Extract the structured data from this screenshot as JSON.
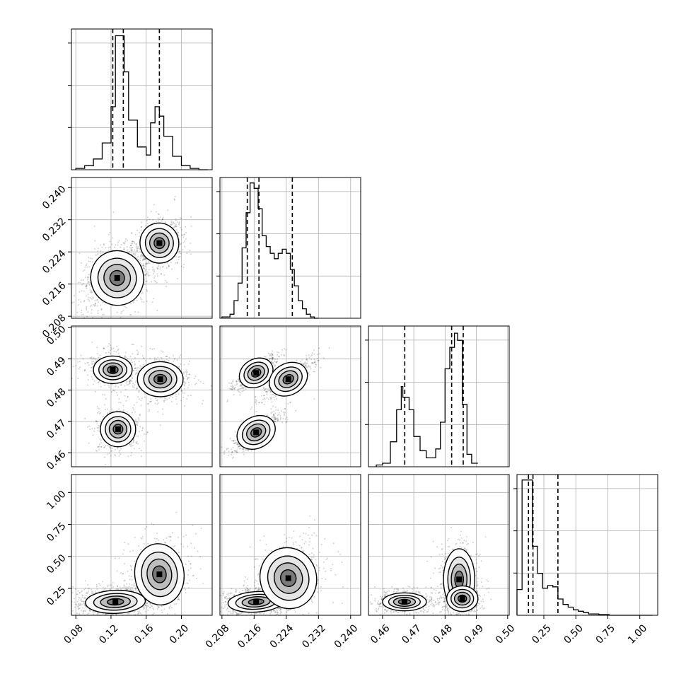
{
  "chart_data": {
    "type": "corner",
    "n_parameters": 4,
    "colors": {
      "line": "#000000",
      "grid": "#b0b0b0",
      "scatter": "#000000",
      "background": "#ffffff"
    },
    "grid": true,
    "axes": [
      {
        "range": [
          0.075,
          0.235
        ],
        "ticks": [
          0.08,
          0.12,
          0.16,
          0.2
        ],
        "tick_labels": [
          "0.08",
          "0.12",
          "0.16",
          "0.20"
        ]
      },
      {
        "range": [
          0.2075,
          0.2425
        ],
        "ticks": [
          0.208,
          0.216,
          0.224,
          0.232,
          0.24
        ],
        "tick_labels": [
          "0.208",
          "0.216",
          "0.224",
          "0.232",
          "0.240"
        ]
      },
      {
        "range": [
          0.4555,
          0.5005
        ],
        "ticks": [
          0.46,
          0.47,
          0.48,
          0.49,
          0.5
        ],
        "tick_labels": [
          "0.46",
          "0.47",
          "0.48",
          "0.49",
          "0.50"
        ]
      },
      {
        "range": [
          0.04,
          1.14
        ],
        "ticks": [
          0.25,
          0.5,
          0.75,
          1.0
        ],
        "tick_labels": [
          "0.25",
          "0.50",
          "0.75",
          "1.00"
        ]
      }
    ],
    "histograms": [
      {
        "param": 0,
        "bin_edges": [
          0.08,
          0.09,
          0.1,
          0.11,
          0.12,
          0.125,
          0.13,
          0.135,
          0.14,
          0.15,
          0.16,
          0.165,
          0.17,
          0.175,
          0.18,
          0.19,
          0.2,
          0.21,
          0.22,
          0.23
        ],
        "counts": [
          1,
          3,
          8,
          20,
          47,
          100,
          100,
          73,
          37,
          17,
          11,
          35,
          47,
          40,
          25,
          10,
          3,
          1,
          0
        ],
        "quantiles": [
          0.122,
          0.134,
          0.175
        ],
        "ylim": [
          0,
          105
        ]
      },
      {
        "param": 1,
        "bin_edges": [
          0.208,
          0.21,
          0.211,
          0.212,
          0.213,
          0.214,
          0.215,
          0.216,
          0.217,
          0.218,
          0.219,
          0.22,
          0.221,
          0.222,
          0.223,
          0.224,
          0.225,
          0.226,
          0.227,
          0.228,
          0.229,
          0.23,
          0.231,
          0.232
        ],
        "counts": [
          1,
          3,
          13,
          26,
          52,
          78,
          100,
          96,
          81,
          61,
          53,
          48,
          44,
          48,
          51,
          48,
          36,
          24,
          13,
          7,
          3,
          1,
          0
        ],
        "quantiles": [
          0.2143,
          0.2172,
          0.2255
        ],
        "ylim": [
          0,
          104
        ]
      },
      {
        "param": 2,
        "bin_edges": [
          0.458,
          0.46,
          0.4625,
          0.4645,
          0.466,
          0.4665,
          0.4685,
          0.47,
          0.472,
          0.474,
          0.4755,
          0.477,
          0.4785,
          0.48,
          0.4815,
          0.483,
          0.484,
          0.4855,
          0.487,
          0.4885,
          0.4905
        ],
        "counts": [
          1,
          2,
          14,
          32,
          45,
          39,
          32,
          17,
          9,
          5,
          5,
          10,
          25,
          55,
          67,
          75,
          71,
          35,
          7,
          2
        ],
        "quantiles": [
          0.4671,
          0.4821,
          0.4858
        ],
        "ylim": [
          0,
          79
        ]
      },
      {
        "param": 3,
        "bin_edges": [
          0.04,
          0.08,
          0.12,
          0.16,
          0.2,
          0.24,
          0.28,
          0.32,
          0.36,
          0.4,
          0.44,
          0.48,
          0.52,
          0.56,
          0.6,
          0.68,
          0.76,
          1.1
        ],
        "counts": [
          19,
          100,
          100,
          51,
          31,
          20,
          22,
          21,
          12,
          8,
          6,
          4,
          3,
          2,
          1,
          0.5,
          0
        ],
        "quantiles": [
          0.13,
          0.165,
          0.36
        ],
        "ylim": [
          0,
          104
        ]
      }
    ],
    "density_panels": [
      {
        "x_param": 0,
        "y_param": 1,
        "modes": [
          {
            "x": 0.127,
            "y": 0.2175,
            "sx": 0.015,
            "sy": 0.0034,
            "rho": 0.3,
            "weight": 0.65
          },
          {
            "x": 0.175,
            "y": 0.2262,
            "sx": 0.011,
            "sy": 0.0025,
            "rho": 0.2,
            "weight": 0.35
          }
        ]
      },
      {
        "x_param": 0,
        "y_param": 2,
        "modes": [
          {
            "x": 0.122,
            "y": 0.4865,
            "sx": 0.011,
            "sy": 0.0022,
            "rho": 0.0,
            "weight": 0.35
          },
          {
            "x": 0.128,
            "y": 0.4675,
            "sx": 0.01,
            "sy": 0.0028,
            "rho": 0.0,
            "weight": 0.3
          },
          {
            "x": 0.176,
            "y": 0.4835,
            "sx": 0.013,
            "sy": 0.0028,
            "rho": 0.0,
            "weight": 0.35
          }
        ]
      },
      {
        "x_param": 0,
        "y_param": 3,
        "modes": [
          {
            "x": 0.125,
            "y": 0.145,
            "sx": 0.017,
            "sy": 0.045,
            "rho": 0.1,
            "weight": 0.65
          },
          {
            "x": 0.175,
            "y": 0.36,
            "sx": 0.014,
            "sy": 0.12,
            "rho": 0.1,
            "weight": 0.35
          }
        ]
      },
      {
        "x_param": 1,
        "y_param": 2,
        "modes": [
          {
            "x": 0.2165,
            "y": 0.4855,
            "sx": 0.0022,
            "sy": 0.0022,
            "rho": 0.85,
            "weight": 0.33
          },
          {
            "x": 0.2245,
            "y": 0.4835,
            "sx": 0.0025,
            "sy": 0.0025,
            "rho": 0.85,
            "weight": 0.34
          },
          {
            "x": 0.2165,
            "y": 0.4665,
            "sx": 0.0025,
            "sy": 0.0025,
            "rho": 0.85,
            "weight": 0.33
          }
        ]
      },
      {
        "x_param": 1,
        "y_param": 3,
        "modes": [
          {
            "x": 0.2165,
            "y": 0.145,
            "sx": 0.0035,
            "sy": 0.04,
            "rho": 0.2,
            "weight": 0.6
          },
          {
            "x": 0.2245,
            "y": 0.33,
            "sx": 0.0035,
            "sy": 0.12,
            "rho": 0.3,
            "weight": 0.4
          }
        ]
      },
      {
        "x_param": 2,
        "y_param": 3,
        "modes": [
          {
            "x": 0.467,
            "y": 0.145,
            "sx": 0.0035,
            "sy": 0.035,
            "rho": 0.0,
            "weight": 0.35
          },
          {
            "x": 0.4845,
            "y": 0.32,
            "sx": 0.0025,
            "sy": 0.12,
            "rho": 0.0,
            "weight": 0.35
          },
          {
            "x": 0.4855,
            "y": 0.17,
            "sx": 0.0025,
            "sy": 0.05,
            "rho": 0.0,
            "weight": 0.3
          }
        ]
      }
    ]
  }
}
